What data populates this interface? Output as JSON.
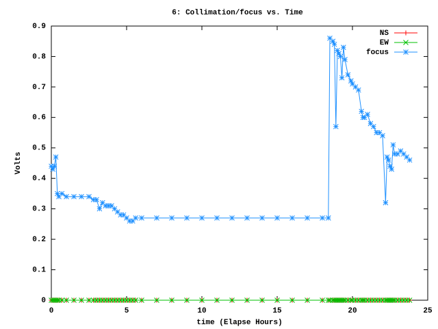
{
  "chart_data": {
    "type": "line",
    "title": "6: Collimation/focus vs. Time",
    "xlabel": "time (Elapse Hours)",
    "ylabel": "Volts",
    "xlim": [
      0,
      25
    ],
    "xticks": [
      0,
      5,
      10,
      15,
      20,
      25
    ],
    "ylim": [
      0,
      0.9
    ],
    "yticks": [
      0,
      0.1,
      0.2,
      0.3,
      0.4,
      0.5,
      0.6,
      0.7,
      0.8,
      0.9
    ],
    "legend": "top-right",
    "x": [
      0,
      0.1,
      0.2,
      0.3,
      0.4,
      0.5,
      0.7,
      1,
      1.5,
      2,
      2.5,
      2.8,
      3,
      3.2,
      3.4,
      3.6,
      3.8,
      4,
      4.2,
      4.4,
      4.6,
      4.8,
      5,
      5.2,
      5.4,
      5.6,
      6,
      7,
      8,
      9,
      10,
      11,
      12,
      13,
      14,
      15,
      16,
      17,
      18,
      18.4,
      18.5,
      18.7,
      18.8,
      18.9,
      19,
      19.1,
      19.2,
      19.3,
      19.4,
      19.5,
      19.7,
      19.9,
      20,
      20.2,
      20.4,
      20.6,
      20.7,
      20.8,
      21,
      21.2,
      21.4,
      21.6,
      21.8,
      22,
      22.2,
      22.3,
      22.4,
      22.5,
      22.6,
      22.7,
      22.8,
      23,
      23.2,
      23.4,
      23.6,
      23.8
    ],
    "series": [
      {
        "name": "NS",
        "color": "#ff0000",
        "marker": "plus",
        "values": [
          0,
          0,
          0,
          0,
          0,
          0,
          0,
          0,
          0,
          0,
          0,
          0,
          0,
          0,
          0,
          0,
          0,
          0,
          0,
          0,
          0,
          0,
          0,
          0,
          0,
          0,
          0,
          0,
          0,
          0,
          0,
          0,
          0,
          0,
          0,
          0,
          0,
          0,
          0,
          0,
          0,
          0,
          0,
          0,
          0,
          0,
          0,
          0,
          0,
          0,
          0,
          0,
          0,
          0,
          0,
          0,
          0,
          0,
          0,
          0,
          0,
          0,
          0,
          0,
          0,
          0,
          0,
          0,
          0,
          0,
          0,
          0,
          0,
          0,
          0,
          0
        ]
      },
      {
        "name": "EW",
        "color": "#00c000",
        "marker": "cross",
        "values": [
          0,
          0,
          0,
          0,
          0,
          0,
          0,
          0,
          0,
          0,
          0,
          0,
          0,
          0,
          0,
          0,
          0,
          0,
          0,
          0,
          0,
          0,
          0,
          0,
          0,
          0,
          0,
          0,
          0,
          0,
          0,
          0,
          0,
          0,
          0,
          0,
          0,
          0,
          0,
          0,
          0,
          0,
          0,
          0,
          0,
          0,
          0,
          0,
          0,
          0,
          0,
          0,
          0,
          0,
          0,
          0,
          0,
          0,
          0,
          0,
          0,
          0,
          0,
          0,
          0,
          0,
          0,
          0,
          0,
          0,
          0,
          0,
          0,
          0,
          0,
          0
        ]
      },
      {
        "name": "focus",
        "color": "#1e90ff",
        "marker": "star",
        "values": [
          0.44,
          0.43,
          0.44,
          0.47,
          0.35,
          0.34,
          0.35,
          0.34,
          0.34,
          0.34,
          0.34,
          0.33,
          0.33,
          0.3,
          0.32,
          0.31,
          0.31,
          0.31,
          0.3,
          0.29,
          0.28,
          0.28,
          0.27,
          0.26,
          0.26,
          0.27,
          0.27,
          0.27,
          0.27,
          0.27,
          0.27,
          0.27,
          0.27,
          0.27,
          0.27,
          0.27,
          0.27,
          0.27,
          0.27,
          0.27,
          0.86,
          0.85,
          0.84,
          0.57,
          0.82,
          0.81,
          0.8,
          0.73,
          0.83,
          0.79,
          0.74,
          0.72,
          0.71,
          0.7,
          0.69,
          0.62,
          0.6,
          0.6,
          0.61,
          0.58,
          0.57,
          0.55,
          0.55,
          0.54,
          0.32,
          0.47,
          0.46,
          0.44,
          0.43,
          0.51,
          0.48,
          0.48,
          0.49,
          0.48,
          0.47,
          0.46
        ]
      }
    ]
  }
}
